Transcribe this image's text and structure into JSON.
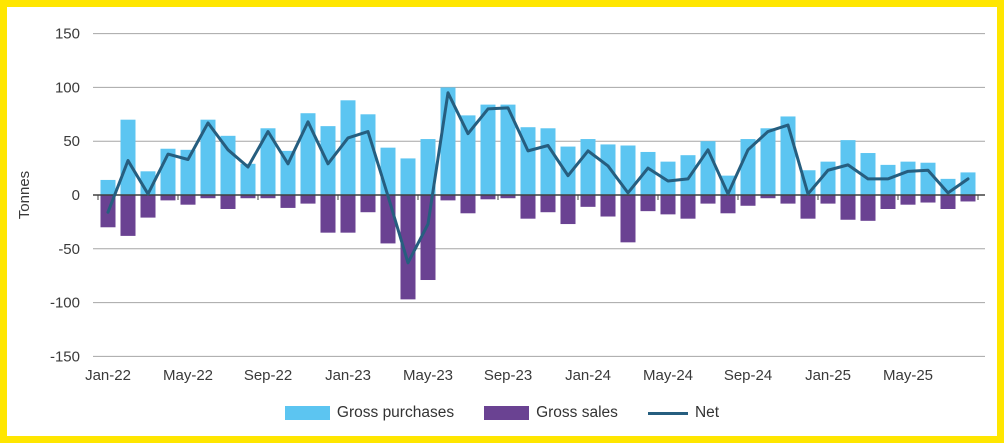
{
  "frame": {
    "border_color": "#FFE600",
    "background_color": "#FFFFFF"
  },
  "chart_data": {
    "type": "bar",
    "title": "",
    "xlabel": "",
    "ylabel": "Tonnes",
    "ylim": [
      -150,
      150
    ],
    "yticks": [
      150,
      100,
      50,
      0,
      -50,
      -100,
      -150
    ],
    "grid": true,
    "legend_position": "bottom",
    "x_axis_labels": [
      "Jan-22",
      "May-22",
      "Sep-22",
      "Jan-23",
      "May-23",
      "Sep-23",
      "Jan-24",
      "May-24",
      "Sep-24",
      "Jan-25",
      "May-25"
    ],
    "categories": [
      "Jan-22",
      "Feb-22",
      "Mar-22",
      "Apr-22",
      "May-22",
      "Jun-22",
      "Jul-22",
      "Aug-22",
      "Sep-22",
      "Oct-22",
      "Nov-22",
      "Dec-22",
      "Jan-23",
      "Feb-23",
      "Mar-23",
      "Apr-23",
      "May-23",
      "Jun-23",
      "Jul-23",
      "Aug-23",
      "Sep-23",
      "Oct-23",
      "Nov-23",
      "Dec-23",
      "Jan-24",
      "Feb-24",
      "Mar-24",
      "Apr-24",
      "May-24",
      "Jun-24",
      "Jul-24",
      "Aug-24",
      "Sep-24",
      "Oct-24",
      "Nov-24",
      "Dec-24",
      "Jan-25",
      "Feb-25",
      "Mar-25",
      "Apr-25",
      "May-25",
      "Jun-25",
      "Jul-25",
      "Aug-25"
    ],
    "series": [
      {
        "name": "Gross purchases",
        "type": "bar",
        "color": "#5CC5F1",
        "values": [
          14,
          70,
          22,
          43,
          42,
          70,
          55,
          29,
          62,
          41,
          76,
          64,
          88,
          75,
          44,
          34,
          52,
          100,
          74,
          84,
          84,
          63,
          62,
          45,
          52,
          47,
          46,
          40,
          31,
          37,
          50,
          18,
          52,
          62,
          73,
          23,
          31,
          51,
          39,
          28,
          31,
          30,
          15,
          21
        ]
      },
      {
        "name": "Gross sales",
        "type": "bar",
        "color": "#6A4292",
        "values": [
          -30,
          -38,
          -21,
          -5,
          -9,
          -3,
          -13,
          -3,
          -3,
          -12,
          -8,
          -35,
          -35,
          -16,
          -45,
          -97,
          -79,
          -5,
          -17,
          -4,
          -3,
          -22,
          -16,
          -27,
          -11,
          -20,
          -44,
          -15,
          -18,
          -22,
          -8,
          -17,
          -10,
          -3,
          -8,
          -22,
          -8,
          -23,
          -24,
          -13,
          -9,
          -7,
          -13,
          -6
        ]
      },
      {
        "name": "Net",
        "type": "line",
        "color": "#265E7F",
        "values": [
          -16,
          32,
          1,
          38,
          33,
          67,
          42,
          26,
          59,
          29,
          68,
          29,
          53,
          59,
          -1,
          -63,
          -27,
          95,
          57,
          80,
          81,
          41,
          46,
          18,
          41,
          27,
          2,
          25,
          13,
          15,
          42,
          1,
          42,
          59,
          65,
          1,
          23,
          28,
          15,
          15,
          22,
          23,
          2,
          15
        ]
      }
    ]
  },
  "legend": {
    "items": [
      {
        "label": "Gross purchases",
        "color": "#5CC5F1",
        "swatch": "rect"
      },
      {
        "label": "Gross sales",
        "color": "#6A4292",
        "swatch": "rect"
      },
      {
        "label": "Net",
        "color": "#265E7F",
        "swatch": "line"
      }
    ]
  },
  "axis_style": {
    "gridline_color": "#A6A6A6",
    "zero_line_color": "#404040",
    "label_color": "#3A3A3A"
  }
}
